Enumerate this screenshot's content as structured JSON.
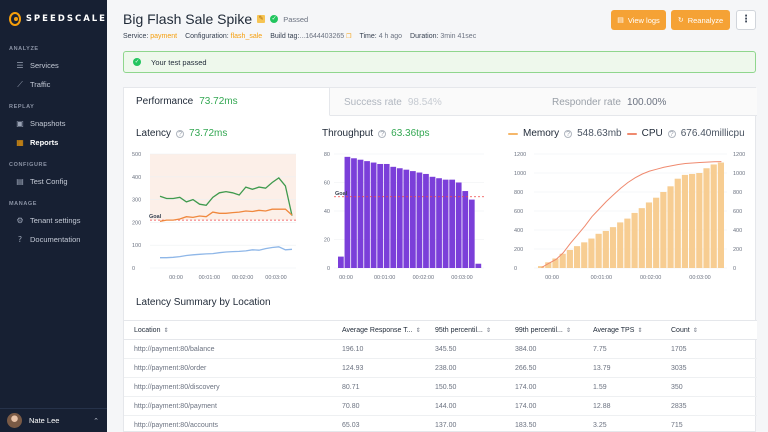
{
  "sidebar": {
    "logo_text": "SPEEDSCALE",
    "sections": [
      {
        "title": "ANALYZE",
        "items": [
          {
            "label": "Services",
            "icon": "list-icon"
          },
          {
            "label": "Traffic",
            "icon": "trend-icon"
          }
        ]
      },
      {
        "title": "REPLAY",
        "items": [
          {
            "label": "Snapshots",
            "icon": "camera-icon"
          },
          {
            "label": "Reports",
            "icon": "report-icon",
            "active": true
          }
        ]
      },
      {
        "title": "CONFIGURE",
        "items": [
          {
            "label": "Test Config",
            "icon": "file-icon"
          }
        ]
      },
      {
        "title": "MANAGE",
        "items": [
          {
            "label": "Tenant settings",
            "icon": "settings-icon"
          },
          {
            "label": "Documentation",
            "icon": "help-icon"
          }
        ]
      }
    ],
    "user_name": "Nate Lee"
  },
  "header": {
    "title": "Big Flash Sale Spike",
    "status": "Passed",
    "view_logs": "View logs",
    "reanalyze": "Reanalyze",
    "meta": {
      "service_label": "Service:",
      "service": "payment",
      "config_label": "Configuration:",
      "config": "flash_sale",
      "build_label": "Build tag:",
      "build": "...1644403265",
      "time_label": "Time:",
      "time": "4 h ago",
      "duration_label": "Duration:",
      "duration": "3min 41sec"
    }
  },
  "banner": {
    "text": "Your test passed"
  },
  "tabs": [
    {
      "label": "Performance",
      "metric": "73.72ms"
    },
    {
      "label": "Success rate",
      "metric": "98.54%"
    },
    {
      "label": "Responder rate",
      "metric": "100.00%"
    }
  ],
  "charts": {
    "latency": {
      "title": "Latency",
      "value": "73.72ms"
    },
    "throughput": {
      "title": "Throughput",
      "value": "63.36tps"
    },
    "memory": {
      "title": "Memory",
      "value": "548.63mb"
    },
    "cpu": {
      "title": "CPU",
      "value": "676.40millicpu"
    },
    "goal_label": "Goal"
  },
  "chart_data": [
    {
      "type": "line",
      "title": "Latency",
      "x_ticks": [
        "00:00",
        "00:01:00",
        "00:02:00",
        "00:03:00"
      ],
      "y_ticks": [
        "500",
        "400",
        "300",
        "200",
        "100",
        "0"
      ],
      "ylim": [
        0,
        500
      ],
      "goal": 210,
      "series": [
        {
          "color": "#3f9a4e",
          "values": [
            315,
            305,
            305,
            310,
            290,
            300,
            280,
            275,
            310,
            330,
            335,
            330,
            320,
            355,
            345,
            355,
            350,
            375,
            395,
            360,
            230
          ]
        },
        {
          "color": "#f0883e",
          "values": [
            205,
            210,
            210,
            215,
            225,
            222,
            228,
            225,
            245,
            240,
            240,
            243,
            245,
            250,
            248,
            253,
            250,
            258,
            258,
            258,
            232
          ]
        },
        {
          "color": "#8fb7e8",
          "values": [
            45,
            45,
            47,
            50,
            55,
            58,
            60,
            62,
            63,
            67,
            70,
            72,
            73,
            75,
            80,
            78,
            85,
            90,
            93,
            80,
            82
          ]
        }
      ]
    },
    {
      "type": "bar",
      "title": "Throughput",
      "x_ticks": [
        "00:00",
        "00:01:00",
        "00:02:00",
        "00:03:00"
      ],
      "y_ticks": [
        "80",
        "60",
        "40",
        "20",
        "0"
      ],
      "ylim": [
        0,
        80
      ],
      "goal": 50,
      "values": [
        8,
        78,
        77,
        76,
        75,
        74,
        73,
        73,
        71,
        70,
        69,
        68,
        67,
        66,
        64,
        63,
        62,
        62,
        60,
        54,
        48,
        3
      ]
    },
    {
      "type": "bar-line",
      "title": "Memory / CPU",
      "x_ticks": [
        "00:00",
        "00:01:00",
        "00:02:00",
        "00:03:00"
      ],
      "y_ticks": [
        "1200",
        "1000",
        "800",
        "600",
        "400",
        "200",
        "0"
      ],
      "ylim": [
        0,
        1200
      ],
      "memory": [
        20,
        60,
        100,
        150,
        190,
        230,
        270,
        310,
        360,
        390,
        430,
        480,
        520,
        580,
        630,
        690,
        740,
        800,
        860,
        940,
        980,
        990,
        1000,
        1050,
        1090,
        1110
      ],
      "cpu": [
        5,
        50,
        90,
        160,
        260,
        350,
        440,
        540,
        620,
        700,
        770,
        840,
        900,
        950,
        990,
        1020,
        1040,
        1060,
        1075,
        1090,
        1100,
        1105,
        1110,
        1115,
        1118,
        1120
      ]
    }
  ],
  "summary": {
    "title": "Latency Summary by Location",
    "columns": [
      "Location",
      "Average Response T...",
      "95th percentil...",
      "99th percentil...",
      "Average TPS",
      "Count"
    ],
    "rows": [
      [
        "http://payment:80/balance",
        "196.10",
        "345.50",
        "384.00",
        "7.75",
        "1705"
      ],
      [
        "http://payment:80/order",
        "124.93",
        "238.00",
        "266.50",
        "13.79",
        "3035"
      ],
      [
        "http://payment:80/discovery",
        "80.71",
        "150.50",
        "174.00",
        "1.59",
        "350"
      ],
      [
        "http://payment:80/payment",
        "70.80",
        "144.00",
        "174.00",
        "12.88",
        "2835"
      ],
      [
        "http://payment:80/accounts",
        "65.03",
        "137.00",
        "183.50",
        "3.25",
        "715"
      ]
    ]
  }
}
